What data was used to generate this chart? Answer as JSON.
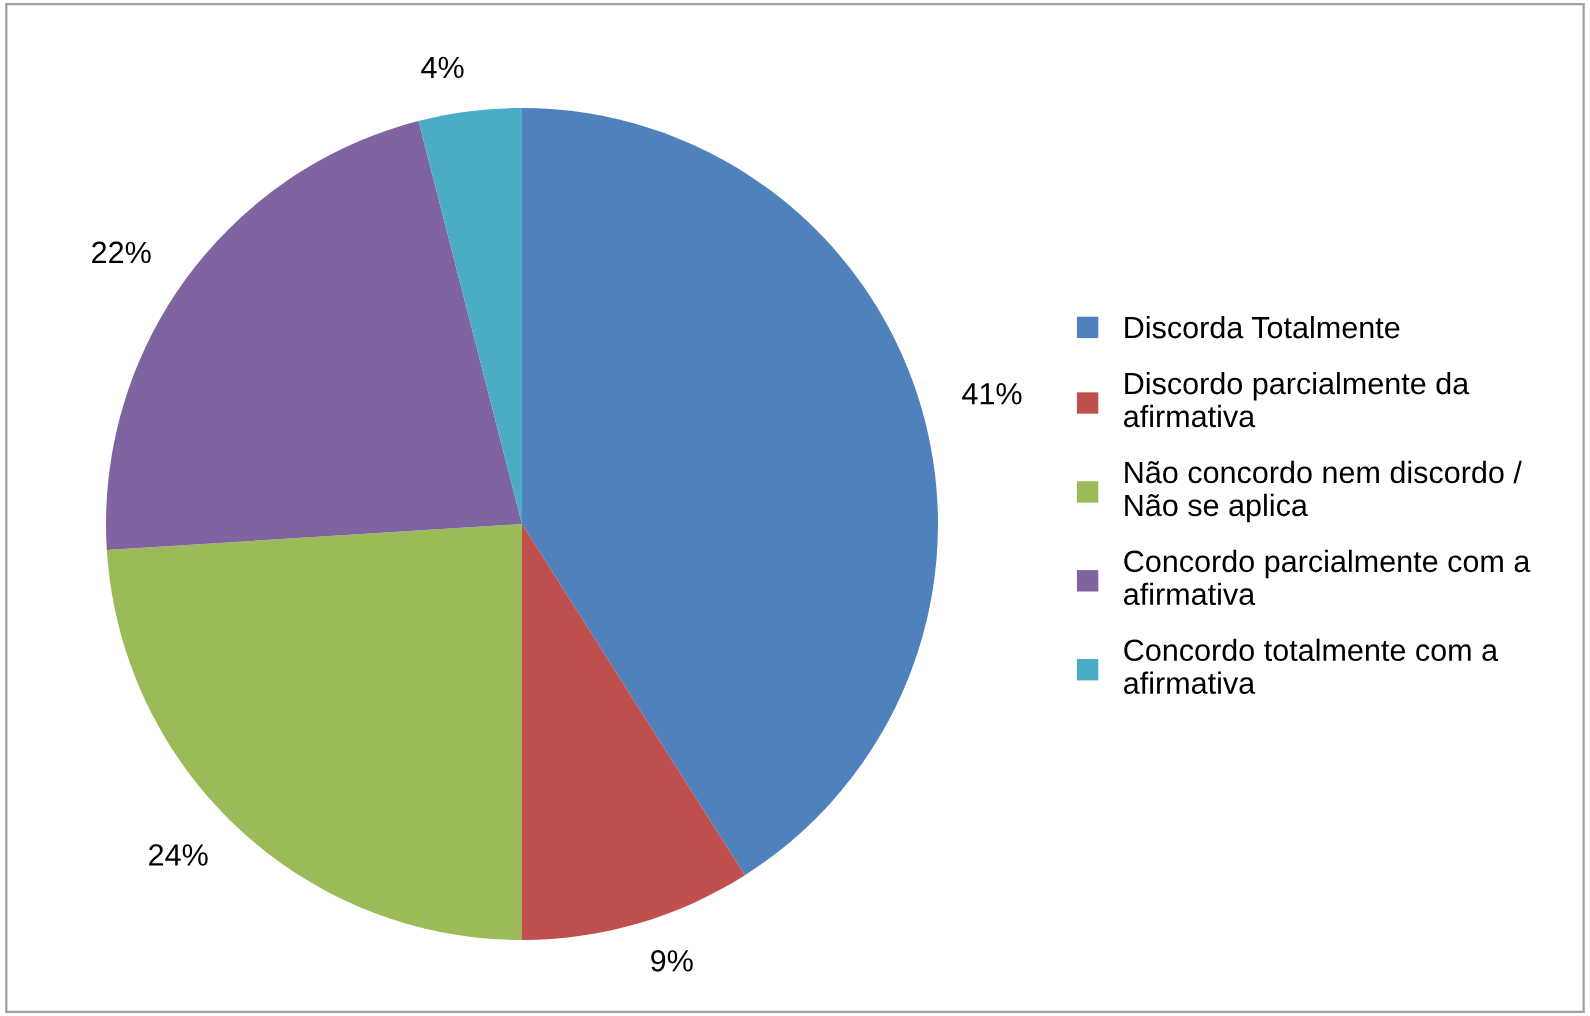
{
  "chart_data": {
    "type": "pie",
    "categories": [
      "Discorda Totalmente",
      "Discordo parcialmente da afirmativa",
      "Não concordo nem discordo / Não se aplica",
      "Concordo parcialmente com a afirmativa",
      "Concordo totalmente com a afirmativa"
    ],
    "values": [
      41,
      9,
      24,
      22,
      4
    ],
    "value_labels": [
      "41%",
      "9%",
      "24%",
      "22%",
      "4%"
    ],
    "colors": [
      "#4f81bd",
      "#c0504d",
      "#9bbb59",
      "#8064a2",
      "#4bacc6"
    ],
    "legend": "right"
  }
}
